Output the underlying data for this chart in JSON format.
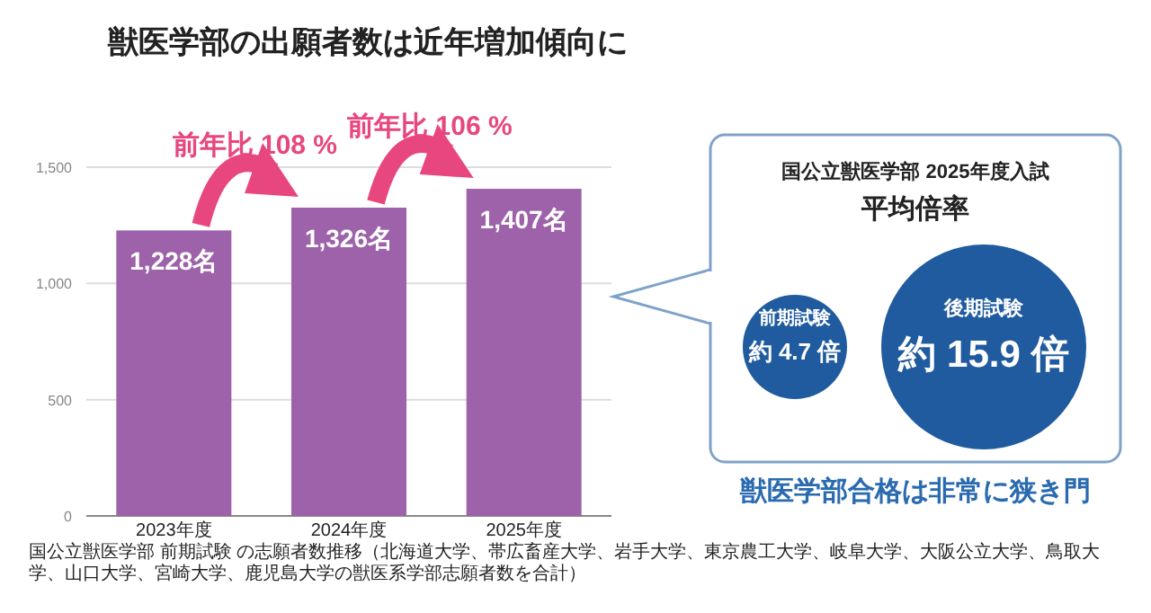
{
  "chart_data": {
    "type": "bar",
    "title": "獣医学部の出願者数は近年増加傾向に",
    "categories": [
      "2023年度",
      "2024年度",
      "2025年度"
    ],
    "values": [
      1228,
      1326,
      1407
    ],
    "value_labels": [
      "1,228名",
      "1,326名",
      "1,407名"
    ],
    "color": "#9d62aa",
    "ylim": [
      0,
      1500
    ],
    "yticks": [
      0,
      500,
      {
        "value": 1000,
        "label": "1,000"
      },
      {
        "value": 1500,
        "label": "1,500"
      }
    ],
    "grid": "y",
    "annotations": [
      "前年比 108 %",
      "前年比 106 %",
      "国公立獣医学部 2025年度入試",
      "平均倍率",
      "前期試験",
      "約 4.7 倍",
      "後期試験",
      "約 15.9 倍",
      "獣医学部合格は非常に狭き門",
      "国公立獣医学部 前期試験 の志願者数推移（北海道大学、帯広畜産大学、岩手大学、東京農工大学、岐阜大学、大阪公立大学、鳥取大学、山口大学、宮崎大学、鹿児島大学の獣医系学部志願者数を合計）"
    ]
  }
}
